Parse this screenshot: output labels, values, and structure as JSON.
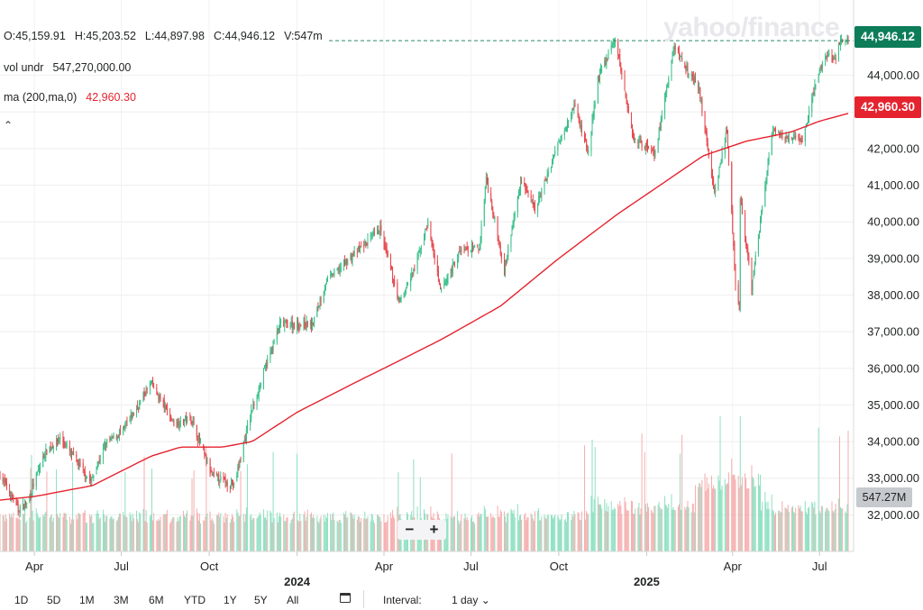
{
  "watermark": "yahoo/finance",
  "legend": {
    "ohlc": {
      "open": "O:45,159.91",
      "high": "H:45,203.52",
      "low": "L:44,897.98",
      "close": "C:44,946.12",
      "volume": "V:547m"
    },
    "vol": {
      "label": "vol undr",
      "value": "547,270,000.00"
    },
    "ma": {
      "label": "ma (200,ma,0)",
      "value": "42,960.30"
    },
    "collapse_glyph": "⌃"
  },
  "price_tag": "44,946.12",
  "ma_tag": "42,960.30",
  "volume_tag": "547.27M",
  "zoom": {
    "minus": "−",
    "plus": "+"
  },
  "ranges": [
    "1D",
    "5D",
    "1M",
    "3M",
    "6M",
    "YTD",
    "1Y",
    "5Y",
    "All"
  ],
  "interval": {
    "label": "Interval:",
    "value": "1 day",
    "chevron": "⌄"
  },
  "colors": {
    "up": "#3bbf8a",
    "down": "#e5484d",
    "up_vol": "#7fdcb8",
    "down_vol": "#f4a2a2",
    "ma": "#e5232e",
    "last_tag": "#0c7c59",
    "ma_tag": "#e5232e"
  },
  "chart_data": {
    "type": "candlestick",
    "symbol_hint": "daily OHLC with 200-day moving average and volume",
    "ylim": [
      31000,
      45500
    ],
    "y_ticks": [
      "32,000.00",
      "33,000.00",
      "34,000.00",
      "35,000.00",
      "36,000.00",
      "37,000.00",
      "38,000.00",
      "39,000.00",
      "40,000.00",
      "41,000.00",
      "42,000.00",
      "43,000.00",
      "44,000.00"
    ],
    "x_ticks": [
      {
        "label": "Apr",
        "date": "2023-04-01"
      },
      {
        "label": "Jul",
        "date": "2023-07-01"
      },
      {
        "label": "Oct",
        "date": "2023-10-01"
      },
      {
        "label": "2024",
        "date": "2024-01-01",
        "bold": true
      },
      {
        "label": "Apr",
        "date": "2024-04-01"
      },
      {
        "label": "Jul",
        "date": "2024-07-01"
      },
      {
        "label": "Oct",
        "date": "2024-10-01"
      },
      {
        "label": "2025",
        "date": "2025-01-01",
        "bold": true
      },
      {
        "label": "Apr",
        "date": "2025-04-01"
      },
      {
        "label": "Jul",
        "date": "2025-07-01"
      }
    ],
    "date_range": [
      "2023-02-24",
      "2025-07-31"
    ],
    "close_anchors": [
      [
        "2023-02-24",
        33100
      ],
      [
        "2023-03-15",
        32150
      ],
      [
        "2023-03-24",
        32300
      ],
      [
        "2023-04-12",
        33700
      ],
      [
        "2023-04-28",
        34100
      ],
      [
        "2023-05-30",
        32900
      ],
      [
        "2023-06-15",
        33950
      ],
      [
        "2023-07-03",
        34300
      ],
      [
        "2023-08-01",
        35600
      ],
      [
        "2023-08-25",
        34500
      ],
      [
        "2023-09-12",
        34650
      ],
      [
        "2023-10-03",
        33100
      ],
      [
        "2023-10-27",
        32800
      ],
      [
        "2023-11-14",
        34800
      ],
      [
        "2023-12-01",
        36200
      ],
      [
        "2023-12-14",
        37200
      ],
      [
        "2024-01-17",
        37200
      ],
      [
        "2024-02-01",
        38400
      ],
      [
        "2024-03-28",
        39800
      ],
      [
        "2024-04-17",
        37800
      ],
      [
        "2024-05-03",
        38700
      ],
      [
        "2024-05-17",
        40000
      ],
      [
        "2024-05-30",
        38100
      ],
      [
        "2024-06-20",
        39200
      ],
      [
        "2024-07-10",
        39300
      ],
      [
        "2024-07-17",
        41200
      ],
      [
        "2024-08-05",
        38700
      ],
      [
        "2024-08-23",
        41200
      ],
      [
        "2024-09-06",
        40300
      ],
      [
        "2024-10-01",
        42200
      ],
      [
        "2024-10-17",
        43200
      ],
      [
        "2024-11-01",
        41900
      ],
      [
        "2024-11-11",
        43900
      ],
      [
        "2024-11-29",
        45000
      ],
      [
        "2024-12-18",
        42300
      ],
      [
        "2025-01-10",
        41900
      ],
      [
        "2025-01-30",
        44800
      ],
      [
        "2025-02-25",
        43600
      ],
      [
        "2025-03-13",
        40800
      ],
      [
        "2025-03-26",
        42500
      ],
      [
        "2025-04-04",
        38300
      ],
      [
        "2025-04-08",
        37700
      ],
      [
        "2025-04-09",
        40600
      ],
      [
        "2025-04-21",
        38200
      ],
      [
        "2025-05-12",
        42400
      ],
      [
        "2025-05-30",
        42300
      ],
      [
        "2025-06-13",
        42200
      ],
      [
        "2025-06-30",
        44100
      ],
      [
        "2025-07-10",
        44600
      ],
      [
        "2025-07-18",
        44400
      ],
      [
        "2025-07-23",
        45000
      ],
      [
        "2025-07-31",
        44946
      ]
    ],
    "ma200_anchors": [
      [
        "2023-02-24",
        32400
      ],
      [
        "2023-04-01",
        32500
      ],
      [
        "2023-06-01",
        32800
      ],
      [
        "2023-08-01",
        33600
      ],
      [
        "2023-09-01",
        33850
      ],
      [
        "2023-10-15",
        33850
      ],
      [
        "2023-11-15",
        34000
      ],
      [
        "2024-01-01",
        34800
      ],
      [
        "2024-03-01",
        35600
      ],
      [
        "2024-04-01",
        36000
      ],
      [
        "2024-06-01",
        36800
      ],
      [
        "2024-08-01",
        37700
      ],
      [
        "2024-10-01",
        39000
      ],
      [
        "2024-12-01",
        40200
      ],
      [
        "2025-01-15",
        41000
      ],
      [
        "2025-03-01",
        41800
      ],
      [
        "2025-04-15",
        42200
      ],
      [
        "2025-06-01",
        42450
      ],
      [
        "2025-07-01",
        42750
      ],
      [
        "2025-07-31",
        42960
      ]
    ],
    "last": {
      "open": 45159.91,
      "high": 45203.52,
      "low": 44897.98,
      "close": 44946.12,
      "volume": 547270000
    },
    "ma200_last": 42960.3,
    "volume_last_m": 547.27
  }
}
